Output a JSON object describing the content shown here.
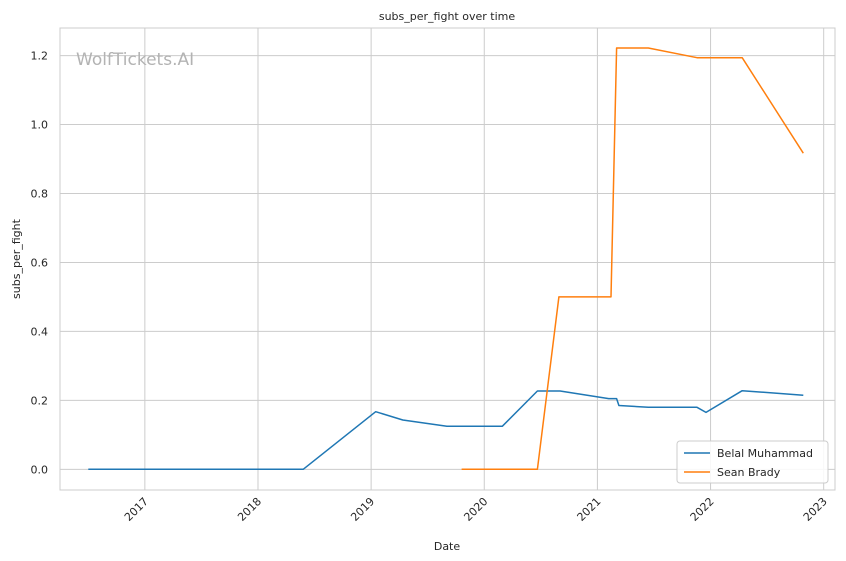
{
  "chart_data": {
    "type": "line",
    "title": "subs_per_fight over time",
    "xlabel": "Date",
    "ylabel": "subs_per_fight",
    "watermark": "WolfTickets.AI",
    "x_range": [
      2016.25,
      2023.1
    ],
    "y_range": [
      -0.06,
      1.28
    ],
    "x_ticks": [
      2017,
      2018,
      2019,
      2020,
      2021,
      2022,
      2023
    ],
    "x_tick_labels": [
      "2017",
      "2018",
      "2019",
      "2020",
      "2021",
      "2022",
      "2023"
    ],
    "y_ticks": [
      0.0,
      0.2,
      0.4,
      0.6,
      0.8,
      1.0,
      1.2
    ],
    "y_tick_labels": [
      "0.0",
      "0.2",
      "0.4",
      "0.6",
      "0.8",
      "1.0",
      "1.2"
    ],
    "grid": true,
    "legend_position": "lower-right",
    "series": [
      {
        "name": "Belal Muhammad",
        "color": "#1f77b4",
        "points": [
          [
            2016.5,
            0.0
          ],
          [
            2018.4,
            0.0
          ],
          [
            2019.04,
            0.167
          ],
          [
            2019.28,
            0.143
          ],
          [
            2019.67,
            0.125
          ],
          [
            2020.16,
            0.125
          ],
          [
            2020.47,
            0.227
          ],
          [
            2020.67,
            0.227
          ],
          [
            2021.1,
            0.205
          ],
          [
            2021.17,
            0.205
          ],
          [
            2021.19,
            0.185
          ],
          [
            2021.45,
            0.18
          ],
          [
            2021.88,
            0.18
          ],
          [
            2021.96,
            0.165
          ],
          [
            2022.28,
            0.228
          ],
          [
            2022.82,
            0.215
          ]
        ]
      },
      {
        "name": "Sean Brady",
        "color": "#ff7f0e",
        "points": [
          [
            2019.8,
            0.0
          ],
          [
            2020.47,
            0.0
          ],
          [
            2020.66,
            0.5
          ],
          [
            2021.12,
            0.5
          ],
          [
            2021.17,
            1.222
          ],
          [
            2021.45,
            1.222
          ],
          [
            2021.88,
            1.194
          ],
          [
            2022.28,
            1.194
          ],
          [
            2022.82,
            0.917
          ]
        ]
      }
    ]
  }
}
